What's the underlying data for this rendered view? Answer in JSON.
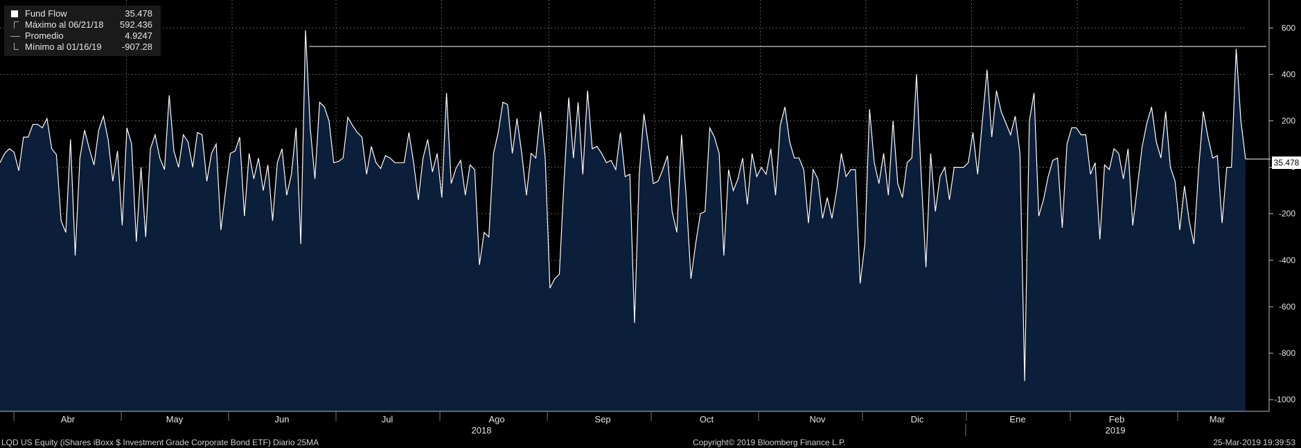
{
  "legend": {
    "items": [
      {
        "label": "Fund Flow",
        "value": "35.478",
        "icon": "filled-square-icon"
      },
      {
        "label": "Máximo al 06/21/18",
        "value": "592.436",
        "icon": "max-marker-icon"
      },
      {
        "label": "Promedio",
        "value": "4.9247",
        "icon": "average-marker-icon"
      },
      {
        "label": "Mínimo al 01/16/19",
        "value": "-907.28",
        "icon": "min-marker-icon"
      }
    ]
  },
  "last_value_badge": "35.478",
  "footer": {
    "left": "LQD US Equity (iShares iBoxx $ Investment Grade Corporate Bond ETF)  Diario 25MA",
    "center": "Copyright© 2019 Bloomberg Finance L.P.",
    "right": "25-Mar-2019 19:39:53"
  },
  "colors": {
    "background": "#000000",
    "area_fill": "#0b1e3a",
    "line": "#ffffff",
    "grid": "#5a5a5a",
    "text": "#e6e6e6"
  },
  "chart_data": {
    "type": "area",
    "series": [
      {
        "name": "Fund Flow"
      }
    ],
    "values": [
      20,
      60,
      80,
      65,
      -15,
      130,
      130,
      185,
      185,
      170,
      210,
      80,
      55,
      -230,
      -280,
      120,
      -380,
      40,
      160,
      80,
      10,
      160,
      220,
      120,
      -60,
      70,
      -250,
      170,
      100,
      -320,
      0,
      -300,
      80,
      140,
      40,
      -10,
      310,
      70,
      0,
      140,
      110,
      0,
      150,
      140,
      -60,
      60,
      100,
      -270,
      -100,
      60,
      70,
      130,
      -210,
      60,
      -50,
      40,
      -100,
      10,
      -230,
      20,
      80,
      -120,
      -30,
      170,
      -330,
      590,
      170,
      -50,
      280,
      260,
      200,
      20,
      25,
      40,
      215,
      180,
      150,
      130,
      -30,
      90,
      20,
      -5,
      50,
      40,
      20,
      20,
      20,
      150,
      20,
      -140,
      40,
      120,
      -20,
      60,
      -130,
      320,
      -70,
      -5,
      30,
      -120,
      10,
      -10,
      -420,
      -280,
      -300,
      60,
      150,
      280,
      270,
      60,
      210,
      60,
      -120,
      60,
      40,
      240,
      40,
      -520,
      -480,
      -460,
      -60,
      300,
      40,
      280,
      -30,
      330,
      80,
      90,
      60,
      20,
      30,
      -10,
      150,
      -40,
      -30,
      -670,
      -30,
      230,
      90,
      -70,
      -60,
      -10,
      50,
      -190,
      -280,
      140,
      -130,
      -480,
      -330,
      -200,
      -190,
      170,
      130,
      60,
      -380,
      -10,
      -100,
      -50,
      40,
      -160,
      60,
      -40,
      0,
      -30,
      80,
      -120,
      180,
      260,
      110,
      40,
      40,
      -10,
      -240,
      -10,
      -50,
      -220,
      -130,
      -220,
      -100,
      60,
      -40,
      -10,
      -10,
      -500,
      -330,
      250,
      20,
      -70,
      60,
      -120,
      200,
      -70,
      -130,
      20,
      40,
      400,
      -40,
      -430,
      60,
      -190,
      -40,
      0,
      -140,
      0,
      0,
      0,
      20,
      150,
      -30,
      200,
      420,
      130,
      330,
      240,
      190,
      140,
      220,
      60,
      -920,
      200,
      320,
      -210,
      -140,
      -40,
      30,
      40,
      -260,
      100,
      170,
      170,
      140,
      140,
      -30,
      20,
      -310,
      10,
      -10,
      80,
      60,
      -50,
      80,
      -250,
      -80,
      90,
      190,
      260,
      110,
      40,
      240,
      0,
      -60,
      -270,
      -80,
      -230,
      -330,
      -10,
      240,
      130,
      40,
      50,
      -240,
      0,
      0,
      510,
      200,
      35
    ],
    "average": 4.9247,
    "max": {
      "label": "Máximo al 06/21/18",
      "value": 592.436
    },
    "min": {
      "label": "Mínimo al 01/16/19",
      "value": -907.28
    },
    "last_value": 35.478,
    "y_ticks": [
      600,
      400,
      200,
      0,
      -200,
      -400,
      -600,
      -800,
      -1000
    ],
    "ylim": [
      -1050,
      720
    ],
    "x_month_labels": [
      "Abr",
      "May",
      "Jun",
      "Jul",
      "Ago",
      "Sep",
      "Oct",
      "Nov",
      "Dic",
      "Ene",
      "Feb",
      "Mar"
    ],
    "x_year_labels": [
      "2018",
      "2019"
    ],
    "reference_line_value": 520,
    "grid": true
  }
}
